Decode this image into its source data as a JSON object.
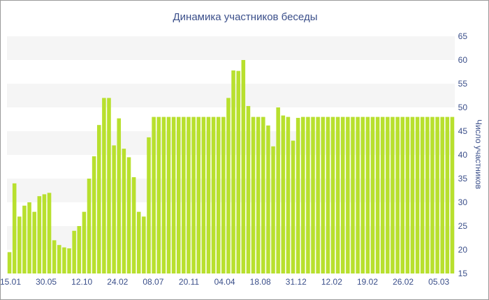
{
  "chart_data": {
    "type": "bar",
    "title": "Динамика участников беседы",
    "xlabel": "",
    "ylabel": "Число участников",
    "ylim": [
      15,
      65
    ],
    "y_ticks": [
      15,
      20,
      25,
      30,
      35,
      40,
      45,
      50,
      55,
      60,
      65
    ],
    "y_axis_side": "right",
    "x_tick_labels": [
      "15.01",
      "30.05",
      "12.10",
      "24.02",
      "08.07",
      "20.11",
      "04.04",
      "18.08",
      "31.12",
      "12.02",
      "19.02",
      "26.02",
      "05.03"
    ],
    "grid": "horizontal bands",
    "bar_color": "#b8e02e",
    "values": [
      19.5,
      34,
      27,
      29.3,
      30,
      28,
      31.3,
      31.7,
      32,
      22,
      21,
      20.5,
      20.3,
      24,
      25,
      28,
      35,
      39.7,
      46.3,
      52,
      52,
      42,
      47.7,
      41.3,
      39.5,
      35.3,
      28,
      27,
      43.7,
      48,
      48,
      48,
      48,
      48,
      48,
      48,
      48,
      48,
      48,
      48,
      48,
      48,
      48,
      48,
      52,
      57.8,
      57.7,
      60,
      50.3,
      48,
      48,
      48,
      46.2,
      41.8,
      50,
      48.3,
      48,
      43,
      47.8,
      48,
      48,
      48,
      48,
      48,
      48,
      48,
      48,
      48,
      48,
      48,
      48,
      48,
      48,
      48,
      48,
      48,
      48,
      48,
      48,
      48,
      48,
      48,
      48,
      48,
      48,
      48,
      48,
      48,
      48,
      48
    ]
  }
}
